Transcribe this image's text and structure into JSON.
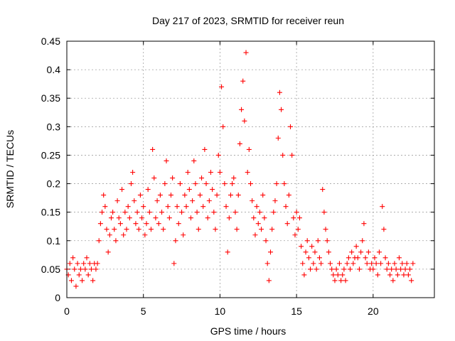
{
  "chart_data": {
    "type": "scatter",
    "title": "Day 217 of 2023, SRMTID for receiver reun",
    "xlabel": "GPS time / hours",
    "ylabel": "SRMTID / TECUs",
    "xlim": [
      0,
      24
    ],
    "ylim": [
      0,
      0.45
    ],
    "xticks": [
      0,
      5,
      10,
      15,
      20
    ],
    "xtick_labels": [
      "0",
      "5",
      "10",
      "15",
      "20"
    ],
    "yticks": [
      0,
      0.05,
      0.1,
      0.15,
      0.2,
      0.25,
      0.3,
      0.35,
      0.4,
      0.45
    ],
    "ytick_labels": [
      "0",
      "0.05",
      "0.1",
      "0.15",
      "0.2",
      "0.25",
      "0.3",
      "0.35",
      "0.4",
      "0.45"
    ],
    "grid": true,
    "marker": "+",
    "color": "#ff0000",
    "series": [
      {
        "name": "SRMTID",
        "points": [
          [
            0.0,
            0.05
          ],
          [
            0.1,
            0.04
          ],
          [
            0.2,
            0.06
          ],
          [
            0.3,
            0.03
          ],
          [
            0.4,
            0.07
          ],
          [
            0.5,
            0.05
          ],
          [
            0.6,
            0.02
          ],
          [
            0.7,
            0.06
          ],
          [
            0.8,
            0.04
          ],
          [
            0.9,
            0.05
          ],
          [
            1.0,
            0.03
          ],
          [
            1.1,
            0.06
          ],
          [
            1.2,
            0.05
          ],
          [
            1.3,
            0.07
          ],
          [
            1.4,
            0.04
          ],
          [
            1.5,
            0.06
          ],
          [
            1.6,
            0.05
          ],
          [
            1.7,
            0.03
          ],
          [
            1.8,
            0.06
          ],
          [
            1.9,
            0.05
          ],
          [
            2.0,
            0.06
          ],
          [
            2.1,
            0.1
          ],
          [
            2.2,
            0.13
          ],
          [
            2.3,
            0.15
          ],
          [
            2.4,
            0.18
          ],
          [
            2.5,
            0.16
          ],
          [
            2.6,
            0.12
          ],
          [
            2.7,
            0.08
          ],
          [
            2.8,
            0.11
          ],
          [
            2.9,
            0.14
          ],
          [
            3.0,
            0.15
          ],
          [
            3.1,
            0.12
          ],
          [
            3.2,
            0.1
          ],
          [
            3.3,
            0.17
          ],
          [
            3.4,
            0.14
          ],
          [
            3.5,
            0.13
          ],
          [
            3.6,
            0.19
          ],
          [
            3.7,
            0.11
          ],
          [
            3.8,
            0.15
          ],
          [
            3.9,
            0.12
          ],
          [
            4.0,
            0.16
          ],
          [
            4.1,
            0.14
          ],
          [
            4.2,
            0.2
          ],
          [
            4.3,
            0.22
          ],
          [
            4.4,
            0.17
          ],
          [
            4.5,
            0.13
          ],
          [
            4.6,
            0.15
          ],
          [
            4.7,
            0.12
          ],
          [
            4.8,
            0.18
          ],
          [
            4.9,
            0.14
          ],
          [
            5.0,
            0.16
          ],
          [
            5.1,
            0.11
          ],
          [
            5.2,
            0.13
          ],
          [
            5.3,
            0.19
          ],
          [
            5.4,
            0.15
          ],
          [
            5.5,
            0.12
          ],
          [
            5.6,
            0.26
          ],
          [
            5.7,
            0.21
          ],
          [
            5.8,
            0.14
          ],
          [
            5.9,
            0.17
          ],
          [
            6.0,
            0.13
          ],
          [
            6.1,
            0.18
          ],
          [
            6.2,
            0.15
          ],
          [
            6.3,
            0.12
          ],
          [
            6.4,
            0.2
          ],
          [
            6.5,
            0.24
          ],
          [
            6.6,
            0.16
          ],
          [
            6.7,
            0.14
          ],
          [
            6.8,
            0.18
          ],
          [
            6.9,
            0.21
          ],
          [
            7.0,
            0.06
          ],
          [
            7.1,
            0.1
          ],
          [
            7.2,
            0.16
          ],
          [
            7.3,
            0.13
          ],
          [
            7.4,
            0.2
          ],
          [
            7.5,
            0.15
          ],
          [
            7.6,
            0.11
          ],
          [
            7.7,
            0.18
          ],
          [
            7.8,
            0.16
          ],
          [
            7.9,
            0.22
          ],
          [
            8.0,
            0.19
          ],
          [
            8.1,
            0.14
          ],
          [
            8.2,
            0.17
          ],
          [
            8.3,
            0.24
          ],
          [
            8.4,
            0.2
          ],
          [
            8.5,
            0.15
          ],
          [
            8.6,
            0.12
          ],
          [
            8.7,
            0.18
          ],
          [
            8.8,
            0.21
          ],
          [
            8.9,
            0.16
          ],
          [
            9.0,
            0.26
          ],
          [
            9.1,
            0.2
          ],
          [
            9.2,
            0.14
          ],
          [
            9.3,
            0.17
          ],
          [
            9.4,
            0.22
          ],
          [
            9.5,
            0.19
          ],
          [
            9.6,
            0.15
          ],
          [
            9.7,
            0.12
          ],
          [
            9.8,
            0.18
          ],
          [
            9.9,
            0.25
          ],
          [
            10.0,
            0.22
          ],
          [
            10.1,
            0.37
          ],
          [
            10.2,
            0.3
          ],
          [
            10.3,
            0.2
          ],
          [
            10.4,
            0.16
          ],
          [
            10.5,
            0.08
          ],
          [
            10.6,
            0.14
          ],
          [
            10.7,
            0.18
          ],
          [
            10.8,
            0.2
          ],
          [
            10.9,
            0.21
          ],
          [
            11.0,
            0.15
          ],
          [
            11.1,
            0.12
          ],
          [
            11.2,
            0.18
          ],
          [
            11.3,
            0.27
          ],
          [
            11.4,
            0.33
          ],
          [
            11.5,
            0.38
          ],
          [
            11.6,
            0.31
          ],
          [
            11.7,
            0.43
          ],
          [
            11.8,
            0.22
          ],
          [
            11.9,
            0.26
          ],
          [
            12.0,
            0.2
          ],
          [
            12.1,
            0.17
          ],
          [
            12.2,
            0.14
          ],
          [
            12.3,
            0.11
          ],
          [
            12.4,
            0.16
          ],
          [
            12.5,
            0.13
          ],
          [
            12.6,
            0.15
          ],
          [
            12.7,
            0.12
          ],
          [
            12.8,
            0.18
          ],
          [
            12.9,
            0.14
          ],
          [
            13.0,
            0.1
          ],
          [
            13.1,
            0.06
          ],
          [
            13.2,
            0.03
          ],
          [
            13.3,
            0.08
          ],
          [
            13.4,
            0.12
          ],
          [
            13.5,
            0.15
          ],
          [
            13.6,
            0.17
          ],
          [
            13.7,
            0.2
          ],
          [
            13.8,
            0.28
          ],
          [
            13.9,
            0.36
          ],
          [
            14.0,
            0.33
          ],
          [
            14.1,
            0.25
          ],
          [
            14.2,
            0.2
          ],
          [
            14.3,
            0.16
          ],
          [
            14.4,
            0.13
          ],
          [
            14.5,
            0.18
          ],
          [
            14.6,
            0.3
          ],
          [
            14.7,
            0.25
          ],
          [
            14.8,
            0.14
          ],
          [
            14.9,
            0.11
          ],
          [
            15.0,
            0.15
          ],
          [
            15.1,
            0.12
          ],
          [
            15.2,
            0.14
          ],
          [
            15.3,
            0.09
          ],
          [
            15.4,
            0.06
          ],
          [
            15.5,
            0.04
          ],
          [
            15.6,
            0.08
          ],
          [
            15.7,
            0.1
          ],
          [
            15.8,
            0.07
          ],
          [
            15.9,
            0.05
          ],
          [
            16.0,
            0.09
          ],
          [
            16.1,
            0.06
          ],
          [
            16.2,
            0.08
          ],
          [
            16.3,
            0.05
          ],
          [
            16.4,
            0.1
          ],
          [
            16.5,
            0.07
          ],
          [
            16.6,
            0.06
          ],
          [
            16.7,
            0.19
          ],
          [
            16.8,
            0.15
          ],
          [
            16.9,
            0.12
          ],
          [
            17.0,
            0.1
          ],
          [
            17.1,
            0.08
          ],
          [
            17.2,
            0.06
          ],
          [
            17.3,
            0.05
          ],
          [
            17.4,
            0.04
          ],
          [
            17.5,
            0.03
          ],
          [
            17.6,
            0.05
          ],
          [
            17.7,
            0.04
          ],
          [
            17.8,
            0.06
          ],
          [
            17.9,
            0.03
          ],
          [
            18.0,
            0.04
          ],
          [
            18.1,
            0.05
          ],
          [
            18.2,
            0.03
          ],
          [
            18.3,
            0.06
          ],
          [
            18.4,
            0.07
          ],
          [
            18.5,
            0.05
          ],
          [
            18.6,
            0.08
          ],
          [
            18.7,
            0.06
          ],
          [
            18.8,
            0.07
          ],
          [
            18.9,
            0.09
          ],
          [
            19.0,
            0.07
          ],
          [
            19.1,
            0.05
          ],
          [
            19.2,
            0.08
          ],
          [
            19.3,
            0.1
          ],
          [
            19.4,
            0.13
          ],
          [
            19.5,
            0.07
          ],
          [
            19.6,
            0.06
          ],
          [
            19.7,
            0.08
          ],
          [
            19.8,
            0.05
          ],
          [
            19.9,
            0.06
          ],
          [
            20.0,
            0.05
          ],
          [
            20.1,
            0.07
          ],
          [
            20.2,
            0.06
          ],
          [
            20.3,
            0.04
          ],
          [
            20.4,
            0.08
          ],
          [
            20.5,
            0.06
          ],
          [
            20.6,
            0.16
          ],
          [
            20.7,
            0.12
          ],
          [
            20.8,
            0.07
          ],
          [
            20.9,
            0.05
          ],
          [
            21.0,
            0.06
          ],
          [
            21.1,
            0.04
          ],
          [
            21.2,
            0.05
          ],
          [
            21.3,
            0.03
          ],
          [
            21.4,
            0.06
          ],
          [
            21.5,
            0.05
          ],
          [
            21.6,
            0.04
          ],
          [
            21.7,
            0.07
          ],
          [
            21.8,
            0.05
          ],
          [
            21.9,
            0.06
          ],
          [
            22.0,
            0.04
          ],
          [
            22.1,
            0.05
          ],
          [
            22.2,
            0.06
          ],
          [
            22.3,
            0.04
          ],
          [
            22.4,
            0.05
          ],
          [
            22.5,
            0.03
          ],
          [
            22.6,
            0.06
          ]
        ]
      }
    ]
  }
}
